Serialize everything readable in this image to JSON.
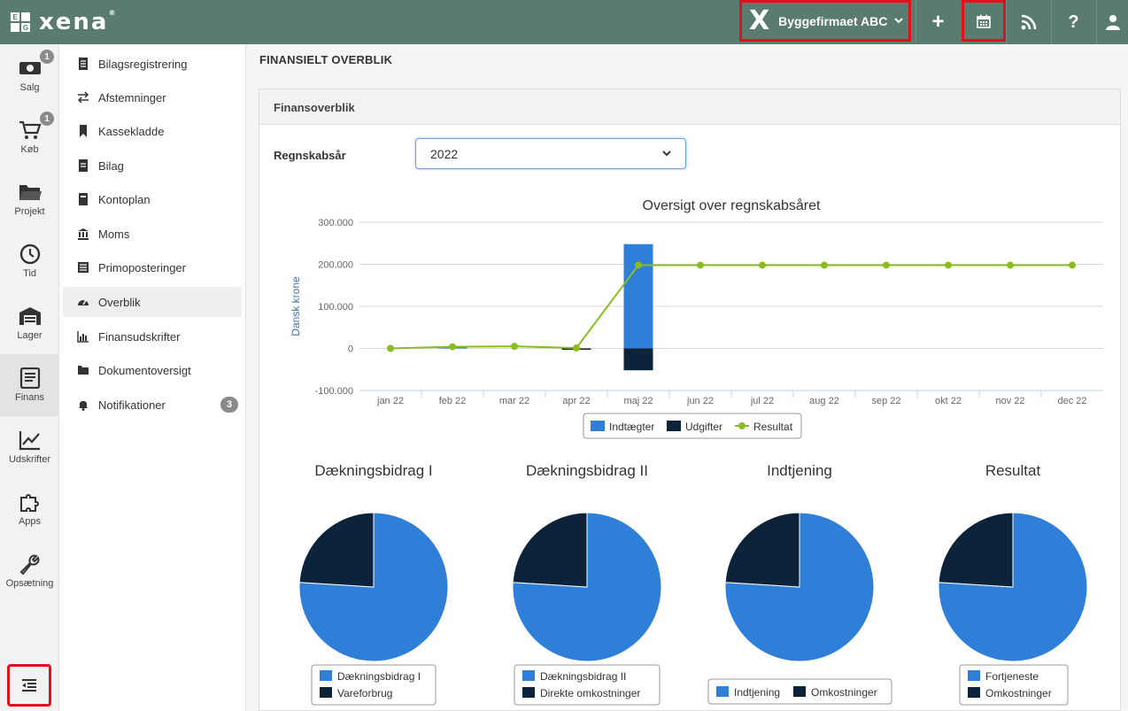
{
  "app": {
    "logo_badge": [
      "E",
      "",
      "",
      "G"
    ],
    "logo_text": "xena",
    "trademark": "®"
  },
  "topbar": {
    "company_name": "Byggefirmaet ABC",
    "company_mark": "X",
    "add_label": "+",
    "help_label": "?"
  },
  "rail": [
    {
      "label": "Salg",
      "badge": "1",
      "icon": "money-icon"
    },
    {
      "label": "Køb",
      "badge": "1",
      "icon": "cart-icon"
    },
    {
      "label": "Projekt",
      "badge": "",
      "icon": "folder-icon"
    },
    {
      "label": "Tid",
      "badge": "",
      "icon": "clock-icon"
    },
    {
      "label": "Lager",
      "badge": "",
      "icon": "warehouse-icon"
    },
    {
      "label": "Finans",
      "badge": "",
      "icon": "book-icon",
      "active": true
    },
    {
      "label": "Udskrifter",
      "badge": "",
      "icon": "line-chart-icon"
    },
    {
      "label": "Apps",
      "badge": "",
      "icon": "puzzle-icon"
    },
    {
      "label": "Opsætning",
      "badge": "",
      "icon": "wrench-icon"
    }
  ],
  "subnav": [
    {
      "label": "Bilagsregistrering",
      "icon": "list-doc-icon"
    },
    {
      "label": "Afstemninger",
      "icon": "exchange-icon"
    },
    {
      "label": "Kassekladde",
      "icon": "bookmark-icon"
    },
    {
      "label": "Bilag",
      "icon": "document-icon"
    },
    {
      "label": "Kontoplan",
      "icon": "book-small-icon"
    },
    {
      "label": "Moms",
      "icon": "bank-icon"
    },
    {
      "label": "Primoposteringer",
      "icon": "table-icon"
    },
    {
      "label": "Overblik",
      "icon": "dashboard-icon",
      "active": true
    },
    {
      "label": "Finansudskrifter",
      "icon": "bar-chart-icon"
    },
    {
      "label": "Dokumentoversigt",
      "icon": "folder-small-icon"
    },
    {
      "label": "Notifikationer",
      "icon": "bell-icon",
      "badge": "3"
    }
  ],
  "main": {
    "page_title": "FINANSIELT OVERBLIK",
    "panel_title": "Finansoverblik",
    "year_label": "Regnskabsår",
    "year_value": "2022"
  },
  "colors": {
    "income": "#2f7ed8",
    "expense": "#0d233a",
    "result": "#8bbc21",
    "topbar": "#5a7b70",
    "highlight": "#e0101a"
  },
  "chart_data": [
    {
      "type": "bar",
      "title": "Oversigt over regnskabsåret",
      "ylabel": "Dansk krone",
      "xlabel": "",
      "categories": [
        "jan 22",
        "feb 22",
        "mar 22",
        "apr 22",
        "maj 22",
        "jun 22",
        "jul 22",
        "aug 22",
        "sep 22",
        "okt 22",
        "nov 22",
        "dec 22"
      ],
      "ylim": [
        -100000,
        300000
      ],
      "yticks": [
        "-100.000",
        "0",
        "100.000",
        "200.000",
        "300.000"
      ],
      "series": [
        {
          "name": "Indtægter",
          "kind": "bar",
          "values": [
            0,
            3000,
            0,
            0,
            248000,
            0,
            0,
            0,
            0,
            0,
            0,
            0
          ]
        },
        {
          "name": "Udgifter",
          "kind": "bar",
          "values": [
            0,
            0,
            0,
            -2000,
            -52000,
            0,
            0,
            0,
            0,
            0,
            0,
            0
          ]
        },
        {
          "name": "Resultat",
          "kind": "line",
          "values": [
            0,
            4000,
            5000,
            1000,
            198000,
            198000,
            198000,
            198000,
            198000,
            198000,
            198000,
            198000
          ]
        }
      ],
      "grid": true,
      "legend": "bottom-center"
    },
    {
      "type": "pie",
      "title": "Dækningsbidrag I",
      "labels": [
        "Dækningsbidrag I",
        "Vareforbrug"
      ],
      "values": [
        76,
        24
      ]
    },
    {
      "type": "pie",
      "title": "Dækningsbidrag II",
      "labels": [
        "Dækningsbidrag II",
        "Direkte omkostninger"
      ],
      "values": [
        76,
        24
      ]
    },
    {
      "type": "pie",
      "title": "Indtjening",
      "labels": [
        "Indtjening",
        "Omkostninger"
      ],
      "values": [
        76,
        24
      ]
    },
    {
      "type": "pie",
      "title": "Resultat",
      "labels": [
        "Fortjeneste",
        "Omkostninger"
      ],
      "values": [
        76,
        24
      ]
    }
  ]
}
